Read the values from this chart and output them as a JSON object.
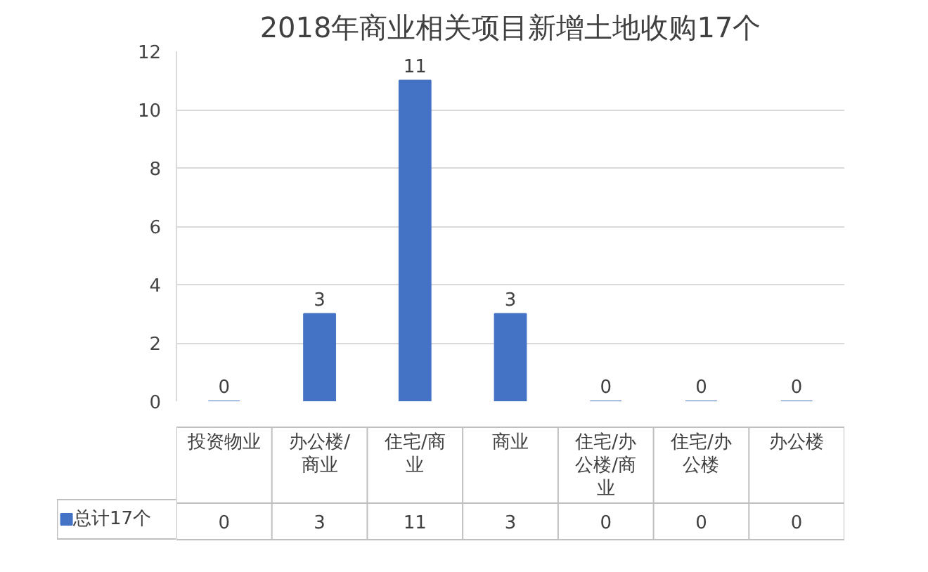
{
  "chart_data": {
    "type": "bar",
    "title": "2018年商业相关项目新增土地收购17个",
    "categories": [
      "投资物业",
      "办公楼/商业",
      "住宅/商业",
      "商业",
      "住宅/办公楼/商业",
      "住宅/办公楼",
      "办公楼"
    ],
    "series": [
      {
        "name": "总计17个",
        "color": "#4472c4",
        "values": [
          0,
          3,
          11,
          3,
          0,
          0,
          0
        ],
        "value_labels": [
          "0",
          "3",
          "11",
          "3",
          "0",
          "0",
          "0"
        ]
      }
    ],
    "ylim": [
      0,
      12
    ],
    "yticks": [
      0,
      2,
      4,
      6,
      8,
      10,
      12
    ],
    "grid": "y",
    "data_labels": true,
    "legend": "bottom left"
  }
}
